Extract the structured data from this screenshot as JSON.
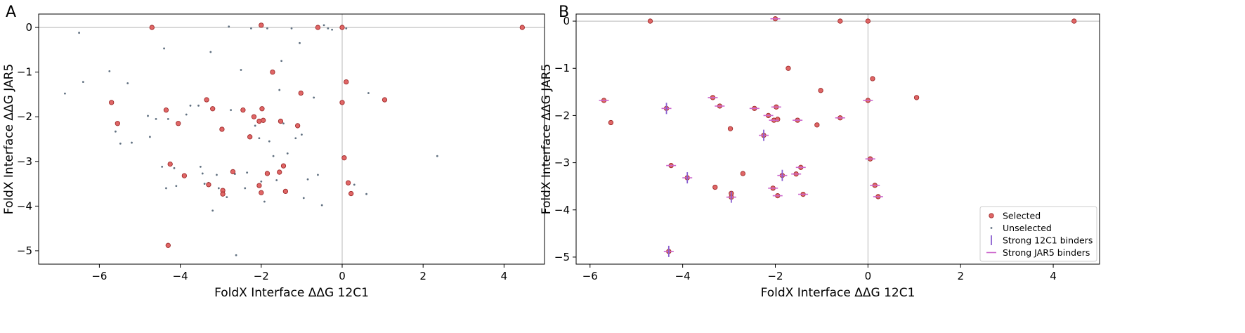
{
  "chart_data": [
    {
      "panel_label": "A",
      "type": "scatter",
      "xlabel": "FoldX Interface ΔΔG 12C1",
      "ylabel": "FoldX Interface ΔΔG JAR5",
      "xlim": [
        -7.5,
        5.0
      ],
      "ylim": [
        -5.3,
        0.3
      ],
      "xticks": [
        -6,
        -4,
        -2,
        0,
        2,
        4
      ],
      "yticks": [
        0,
        -1,
        -2,
        -3,
        -4,
        -5
      ],
      "xtick_labels": [
        "−6",
        "−4",
        "−2",
        "0",
        "2",
        "4"
      ],
      "ytick_labels": [
        "0",
        "−1",
        "−2",
        "−3",
        "−4",
        "−5"
      ],
      "reference_lines": {
        "x": 0,
        "y": 0
      },
      "series": [
        {
          "name": "Selected",
          "color": "#e06666",
          "edge_color": "#9e2a2a",
          "marker": "circle",
          "points": [
            [
              -4.7,
              0.0
            ],
            [
              -2.0,
              0.05
            ],
            [
              -0.6,
              0.0
            ],
            [
              0.0,
              0.0
            ],
            [
              4.45,
              0.0
            ],
            [
              -5.7,
              -1.68
            ],
            [
              -5.55,
              -2.15
            ],
            [
              -4.35,
              -1.85
            ],
            [
              -4.05,
              -2.15
            ],
            [
              -3.35,
              -1.62
            ],
            [
              -3.2,
              -1.82
            ],
            [
              -2.97,
              -2.28
            ],
            [
              -2.45,
              -1.85
            ],
            [
              -2.28,
              -2.45
            ],
            [
              -2.18,
              -2.0
            ],
            [
              -2.05,
              -2.1
            ],
            [
              -1.98,
              -1.82
            ],
            [
              -1.95,
              -2.08
            ],
            [
              -1.72,
              -1.0
            ],
            [
              -1.52,
              -2.1
            ],
            [
              -1.1,
              -2.2
            ],
            [
              -1.02,
              -1.47
            ],
            [
              0.0,
              -1.68
            ],
            [
              0.1,
              -1.22
            ],
            [
              1.05,
              -1.62
            ],
            [
              -4.25,
              -3.06
            ],
            [
              -3.9,
              -3.32
            ],
            [
              -3.3,
              -3.52
            ],
            [
              -2.95,
              -3.65
            ],
            [
              -2.95,
              -3.73
            ],
            [
              -2.7,
              -3.23
            ],
            [
              -2.05,
              -3.54
            ],
            [
              -2.0,
              -3.7
            ],
            [
              -1.85,
              -3.27
            ],
            [
              -1.55,
              -3.24
            ],
            [
              -1.45,
              -3.1
            ],
            [
              -1.4,
              -3.67
            ],
            [
              0.05,
              -2.92
            ],
            [
              0.15,
              -3.48
            ],
            [
              0.22,
              -3.72
            ],
            [
              -4.3,
              -4.88
            ]
          ]
        },
        {
          "name": "Unselected",
          "color": "#607080",
          "marker": "dot",
          "points": [
            [
              -6.85,
              -1.48
            ],
            [
              -6.5,
              -0.12
            ],
            [
              -6.4,
              -1.22
            ],
            [
              -5.75,
              -0.98
            ],
            [
              -5.6,
              -2.33
            ],
            [
              -5.48,
              -2.6
            ],
            [
              -5.3,
              -1.25
            ],
            [
              -5.2,
              -2.58
            ],
            [
              -4.8,
              -1.98
            ],
            [
              -4.75,
              -2.45
            ],
            [
              -4.6,
              -2.05
            ],
            [
              -4.45,
              -3.12
            ],
            [
              -4.35,
              -3.6
            ],
            [
              -4.4,
              -0.47
            ],
            [
              -4.3,
              -2.05
            ],
            [
              -4.15,
              -3.15
            ],
            [
              -4.1,
              -3.55
            ],
            [
              -3.85,
              -1.95
            ],
            [
              -3.75,
              -1.75
            ],
            [
              -3.55,
              -1.75
            ],
            [
              -3.5,
              -3.12
            ],
            [
              -3.45,
              -3.27
            ],
            [
              -3.4,
              -3.5
            ],
            [
              -3.3,
              -3.48
            ],
            [
              -3.25,
              -0.55
            ],
            [
              -3.2,
              -4.1
            ],
            [
              -3.1,
              -3.3
            ],
            [
              -3.05,
              -3.6
            ],
            [
              -2.85,
              -3.8
            ],
            [
              -2.75,
              -1.85
            ],
            [
              -2.65,
              -3.28
            ],
            [
              -2.62,
              -5.1
            ],
            [
              -2.5,
              -0.95
            ],
            [
              -2.4,
              -3.6
            ],
            [
              -2.35,
              -3.25
            ],
            [
              -2.25,
              -0.02
            ],
            [
              -2.15,
              -2.2
            ],
            [
              -2.05,
              -2.48
            ],
            [
              -2.0,
              -3.45
            ],
            [
              -1.92,
              -3.9
            ],
            [
              -1.85,
              -0.02
            ],
            [
              -1.8,
              -2.55
            ],
            [
              -1.7,
              -2.88
            ],
            [
              -1.62,
              -3.42
            ],
            [
              -1.55,
              -1.4
            ],
            [
              -1.5,
              -0.75
            ],
            [
              -1.45,
              -2.15
            ],
            [
              -1.35,
              -2.82
            ],
            [
              -1.25,
              -0.02
            ],
            [
              -1.15,
              -2.48
            ],
            [
              -1.05,
              -0.35
            ],
            [
              -0.95,
              -3.82
            ],
            [
              -0.85,
              -3.4
            ],
            [
              -0.7,
              -1.57
            ],
            [
              -0.6,
              -3.3
            ],
            [
              -0.5,
              -3.98
            ],
            [
              -0.45,
              0.05
            ],
            [
              -0.35,
              -0.02
            ],
            [
              -0.25,
              -0.05
            ],
            [
              0.1,
              -0.02
            ],
            [
              0.3,
              -3.52
            ],
            [
              0.6,
              -3.73
            ],
            [
              0.65,
              -1.47
            ],
            [
              2.35,
              -2.88
            ],
            [
              -2.8,
              0.02
            ],
            [
              -1.0,
              -2.4
            ]
          ]
        }
      ]
    },
    {
      "panel_label": "B",
      "type": "scatter",
      "xlabel": "FoldX Interface ΔΔG 12C1",
      "ylabel": "FoldX Interface ΔΔG JAR5",
      "xlim": [
        -6.3,
        5.0
      ],
      "ylim": [
        -5.15,
        0.15
      ],
      "xticks": [
        -6,
        -4,
        -2,
        0,
        2,
        4
      ],
      "yticks": [
        0,
        -1,
        -2,
        -3,
        -4,
        -5
      ],
      "xtick_labels": [
        "−6",
        "−4",
        "−2",
        "0",
        "2",
        "4"
      ],
      "ytick_labels": [
        "0",
        "−1",
        "−2",
        "−3",
        "−4",
        "−5"
      ],
      "reference_lines": {
        "x": 0,
        "y": 0
      },
      "legend": {
        "position": "lower right",
        "entries": [
          {
            "label": "Selected",
            "kind": "selected"
          },
          {
            "label": "Unselected",
            "kind": "unselected"
          },
          {
            "label": "Strong 12C1 binders",
            "kind": "vline"
          },
          {
            "label": "Strong JAR5 binders",
            "kind": "hline"
          }
        ]
      },
      "series": [
        {
          "name": "Selected",
          "color": "#e06666",
          "edge_color": "#9e2a2a",
          "marker": "circle",
          "points": [
            [
              -4.7,
              0.0
            ],
            [
              -2.0,
              0.05
            ],
            [
              -0.6,
              0.0
            ],
            [
              0.0,
              0.0
            ],
            [
              4.45,
              0.0
            ],
            [
              -5.7,
              -1.68
            ],
            [
              -5.55,
              -2.15
            ],
            [
              -4.35,
              -1.85
            ],
            [
              -3.35,
              -1.62
            ],
            [
              -3.2,
              -1.8
            ],
            [
              -2.97,
              -2.28
            ],
            [
              -2.45,
              -1.85
            ],
            [
              -2.25,
              -2.42
            ],
            [
              -2.15,
              -2.0
            ],
            [
              -2.03,
              -2.1
            ],
            [
              -1.98,
              -1.82
            ],
            [
              -1.95,
              -2.08
            ],
            [
              -1.72,
              -1.0
            ],
            [
              -1.52,
              -2.1
            ],
            [
              -1.1,
              -2.2
            ],
            [
              -1.02,
              -1.47
            ],
            [
              -0.6,
              -2.05
            ],
            [
              0.0,
              -1.68
            ],
            [
              0.1,
              -1.22
            ],
            [
              1.05,
              -1.62
            ],
            [
              -4.25,
              -3.06
            ],
            [
              -3.9,
              -3.32
            ],
            [
              -3.3,
              -3.52
            ],
            [
              -2.95,
              -3.65
            ],
            [
              -2.95,
              -3.73
            ],
            [
              -2.7,
              -3.23
            ],
            [
              -2.05,
              -3.54
            ],
            [
              -1.95,
              -3.7
            ],
            [
              -1.85,
              -3.27
            ],
            [
              -1.55,
              -3.24
            ],
            [
              -1.45,
              -3.1
            ],
            [
              -1.4,
              -3.67
            ],
            [
              0.05,
              -2.92
            ],
            [
              0.15,
              -3.48
            ],
            [
              0.22,
              -3.72
            ],
            [
              -4.3,
              -4.88
            ]
          ]
        },
        {
          "name": "Strong 12C1 binders",
          "color": "#8a5fd0",
          "marker": "vline",
          "points": [
            [
              -4.35,
              -1.85
            ],
            [
              -2.25,
              -2.42
            ],
            [
              -3.9,
              -3.32
            ],
            [
              -2.95,
              -3.73
            ],
            [
              -1.85,
              -3.27
            ],
            [
              -4.3,
              -4.88
            ]
          ]
        },
        {
          "name": "Strong JAR5 binders",
          "color": "#cc66cc",
          "marker": "hline",
          "points": [
            [
              -2.0,
              0.05
            ],
            [
              -5.7,
              -1.68
            ],
            [
              -4.35,
              -1.85
            ],
            [
              -3.35,
              -1.62
            ],
            [
              -3.2,
              -1.8
            ],
            [
              -2.45,
              -1.85
            ],
            [
              -2.25,
              -2.42
            ],
            [
              -2.15,
              -2.0
            ],
            [
              -2.03,
              -2.1
            ],
            [
              -1.98,
              -1.82
            ],
            [
              -1.52,
              -2.1
            ],
            [
              -0.6,
              -2.05
            ],
            [
              0.0,
              -1.68
            ],
            [
              -4.25,
              -3.06
            ],
            [
              -3.9,
              -3.32
            ],
            [
              -2.95,
              -3.73
            ],
            [
              -2.05,
              -3.54
            ],
            [
              -1.95,
              -3.7
            ],
            [
              -1.85,
              -3.27
            ],
            [
              -1.55,
              -3.24
            ],
            [
              -1.45,
              -3.1
            ],
            [
              -1.4,
              -3.67
            ],
            [
              0.05,
              -2.92
            ],
            [
              0.15,
              -3.48
            ],
            [
              0.22,
              -3.72
            ],
            [
              -4.3,
              -4.88
            ]
          ]
        }
      ]
    }
  ]
}
